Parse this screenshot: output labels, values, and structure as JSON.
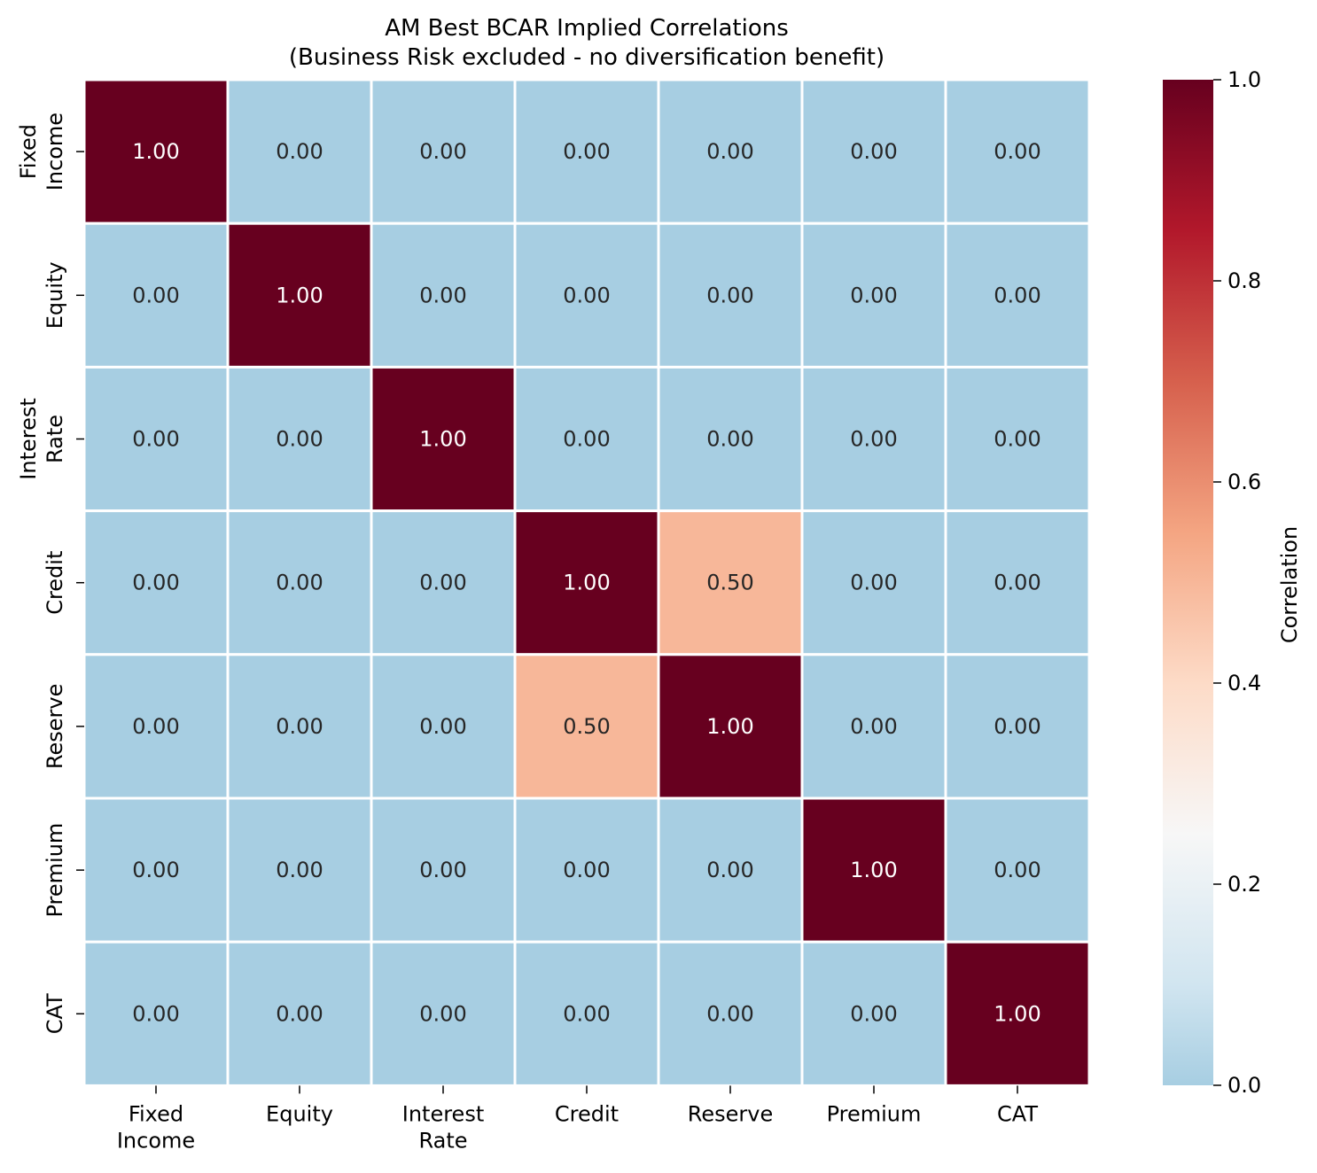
{
  "chart_data": {
    "type": "heatmap",
    "title": "AM Best BCAR Implied Correlations",
    "subtitle": "(Business Risk excluded - no diversification benefit)",
    "row_labels": [
      "Fixed\nIncome",
      "Equity",
      "Interest\nRate",
      "Credit",
      "Reserve",
      "Premium",
      "CAT"
    ],
    "col_labels": [
      "Fixed\nIncome",
      "Equity",
      "Interest\nRate",
      "Credit",
      "Reserve",
      "Premium",
      "CAT"
    ],
    "values": [
      [
        1.0,
        0.0,
        0.0,
        0.0,
        0.0,
        0.0,
        0.0
      ],
      [
        0.0,
        1.0,
        0.0,
        0.0,
        0.0,
        0.0,
        0.0
      ],
      [
        0.0,
        0.0,
        1.0,
        0.0,
        0.0,
        0.0,
        0.0
      ],
      [
        0.0,
        0.0,
        0.0,
        1.0,
        0.5,
        0.0,
        0.0
      ],
      [
        0.0,
        0.0,
        0.0,
        0.5,
        1.0,
        0.0,
        0.0
      ],
      [
        0.0,
        0.0,
        0.0,
        0.0,
        0.0,
        1.0,
        0.0
      ],
      [
        0.0,
        0.0,
        0.0,
        0.0,
        0.0,
        0.0,
        1.0
      ]
    ],
    "value_format_decimals": 2,
    "colormap": "RdBu_r",
    "vmin": 0.0,
    "vmax": 1.0,
    "colorbar": {
      "label": "Correlation",
      "ticks": [
        0.0,
        0.2,
        0.4,
        0.6,
        0.8,
        1.0
      ],
      "tick_labels": [
        "0.0",
        "0.2",
        "0.4",
        "0.6",
        "0.8",
        "1.0"
      ]
    },
    "colorbar_stops": [
      {
        "v": 0.0,
        "color": "#a7cee2"
      },
      {
        "v": 0.1,
        "color": "#d1e5f0"
      },
      {
        "v": 0.25,
        "color": "#f7f7f7"
      },
      {
        "v": 0.4,
        "color": "#fddbc7"
      },
      {
        "v": 0.55,
        "color": "#f4a582"
      },
      {
        "v": 0.7,
        "color": "#d6604d"
      },
      {
        "v": 0.85,
        "color": "#b2182b"
      },
      {
        "v": 1.0,
        "color": "#67001f"
      }
    ],
    "cell_border_color": "#ffffff",
    "text_color_dark": "#262626",
    "text_color_light": "#ffffff"
  }
}
